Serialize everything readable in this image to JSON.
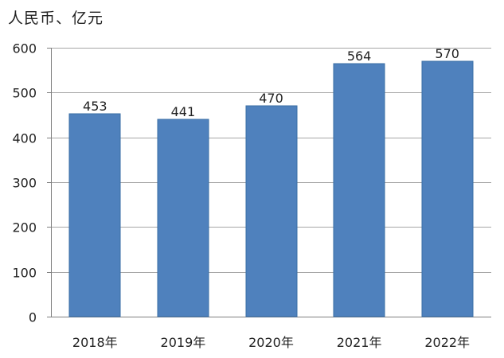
{
  "chart_data": {
    "type": "bar",
    "ylabel": "人民币、亿元",
    "categories": [
      "2018年",
      "2019年",
      "2020年",
      "2021年",
      "2022年"
    ],
    "values": [
      453,
      441,
      470,
      564,
      570
    ],
    "data_labels": [
      "453",
      "441",
      "470",
      "564",
      "570"
    ],
    "ylim": [
      0,
      600
    ],
    "yticks": [
      0,
      100,
      200,
      300,
      400,
      500,
      600
    ],
    "grid": true,
    "bar_color": "#4f81bd",
    "bar_border_color": "#3a6ea5",
    "grid_color": "#a6a6a6"
  }
}
